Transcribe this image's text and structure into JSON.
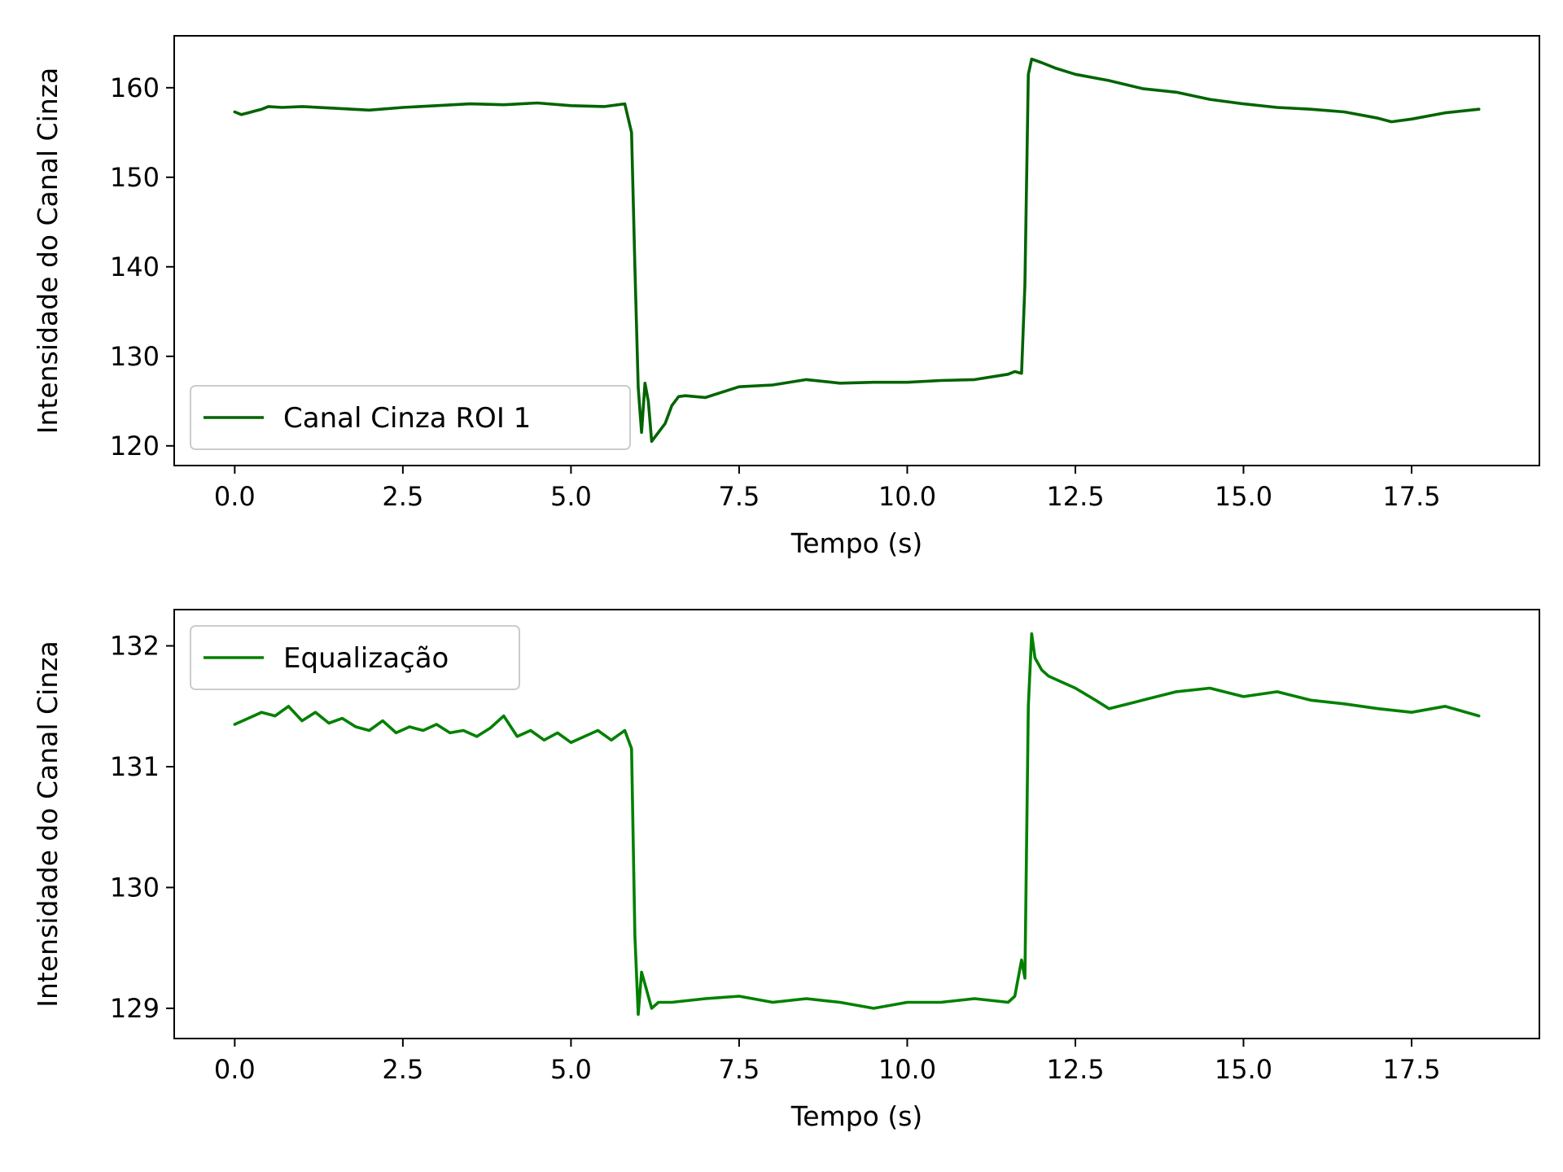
{
  "chart_data": [
    {
      "type": "line",
      "xlabel": "Tempo (s)",
      "ylabel": "Intensidade do Canal Cinza",
      "xlim": [
        -0.9,
        19.4
      ],
      "ylim": [
        117.8,
        165.8
      ],
      "xticks": [
        0.0,
        2.5,
        5.0,
        7.5,
        10.0,
        12.5,
        15.0,
        17.5
      ],
      "xtick_labels": [
        "0.0",
        "2.5",
        "5.0",
        "7.5",
        "10.0",
        "12.5",
        "15.0",
        "17.5"
      ],
      "yticks": [
        120,
        130,
        140,
        150,
        160
      ],
      "ytick_labels": [
        "120",
        "130",
        "140",
        "150",
        "160"
      ],
      "grid": false,
      "legend_position": "lower-left",
      "series": [
        {
          "name": "Canal Cinza ROI 1",
          "color": "#006400",
          "x": [
            0.0,
            0.1,
            0.2,
            0.3,
            0.4,
            0.5,
            0.7,
            1.0,
            1.5,
            2.0,
            2.5,
            3.0,
            3.5,
            4.0,
            4.5,
            5.0,
            5.5,
            5.8,
            5.9,
            5.95,
            6.0,
            6.05,
            6.1,
            6.15,
            6.2,
            6.3,
            6.4,
            6.5,
            6.6,
            6.7,
            7.0,
            7.5,
            8.0,
            8.5,
            9.0,
            9.5,
            10.0,
            10.5,
            11.0,
            11.5,
            11.6,
            11.7,
            11.75,
            11.8,
            11.85,
            12.0,
            12.2,
            12.5,
            13.0,
            13.5,
            14.0,
            14.5,
            15.0,
            15.5,
            16.0,
            16.5,
            17.0,
            17.2,
            17.5,
            18.0,
            18.5
          ],
          "y": [
            157.3,
            157.0,
            157.2,
            157.4,
            157.6,
            157.9,
            157.8,
            157.9,
            157.7,
            157.5,
            157.8,
            158.0,
            158.2,
            158.1,
            158.3,
            158.0,
            157.9,
            158.2,
            155.0,
            140.0,
            126.5,
            121.5,
            127.0,
            125.0,
            120.5,
            121.5,
            122.5,
            124.5,
            125.5,
            125.6,
            125.4,
            126.6,
            126.8,
            127.4,
            127.0,
            127.1,
            127.1,
            127.3,
            127.4,
            128.0,
            128.3,
            128.1,
            138.0,
            161.5,
            163.2,
            162.8,
            162.2,
            161.5,
            160.8,
            159.9,
            159.5,
            158.7,
            158.2,
            157.8,
            157.6,
            157.3,
            156.6,
            156.2,
            156.5,
            157.2,
            157.6
          ]
        }
      ]
    },
    {
      "type": "line",
      "xlabel": "Tempo (s)",
      "ylabel": "Intensidade do Canal Cinza",
      "xlim": [
        -0.9,
        19.4
      ],
      "ylim": [
        128.75,
        132.3
      ],
      "xticks": [
        0.0,
        2.5,
        5.0,
        7.5,
        10.0,
        12.5,
        15.0,
        17.5
      ],
      "xtick_labels": [
        "0.0",
        "2.5",
        "5.0",
        "7.5",
        "10.0",
        "12.5",
        "15.0",
        "17.5"
      ],
      "yticks": [
        129,
        130,
        131,
        132
      ],
      "ytick_labels": [
        "129",
        "130",
        "131",
        "132"
      ],
      "grid": false,
      "legend_position": "upper-left",
      "series": [
        {
          "name": "Equalização",
          "color": "#008000",
          "x": [
            0.0,
            0.2,
            0.4,
            0.6,
            0.8,
            1.0,
            1.2,
            1.4,
            1.6,
            1.8,
            2.0,
            2.2,
            2.4,
            2.6,
            2.8,
            3.0,
            3.2,
            3.4,
            3.6,
            3.8,
            4.0,
            4.2,
            4.4,
            4.6,
            4.8,
            5.0,
            5.2,
            5.4,
            5.6,
            5.8,
            5.9,
            5.95,
            6.0,
            6.05,
            6.1,
            6.2,
            6.3,
            6.5,
            7.0,
            7.5,
            8.0,
            8.5,
            9.0,
            9.5,
            10.0,
            10.5,
            11.0,
            11.5,
            11.6,
            11.7,
            11.75,
            11.8,
            11.85,
            11.9,
            12.0,
            12.1,
            12.3,
            12.5,
            12.8,
            13.0,
            13.5,
            14.0,
            14.5,
            15.0,
            15.5,
            16.0,
            16.5,
            17.0,
            17.5,
            18.0,
            18.5
          ],
          "y": [
            131.35,
            131.4,
            131.45,
            131.42,
            131.5,
            131.38,
            131.45,
            131.36,
            131.4,
            131.33,
            131.3,
            131.38,
            131.28,
            131.33,
            131.3,
            131.35,
            131.28,
            131.3,
            131.25,
            131.32,
            131.42,
            131.25,
            131.3,
            131.22,
            131.28,
            131.2,
            131.25,
            131.3,
            131.22,
            131.3,
            131.15,
            129.6,
            128.95,
            129.3,
            129.2,
            129.0,
            129.05,
            129.05,
            129.08,
            129.1,
            129.05,
            129.08,
            129.05,
            129.0,
            129.05,
            129.05,
            129.08,
            129.05,
            129.1,
            129.4,
            129.25,
            131.5,
            132.1,
            131.9,
            131.8,
            131.75,
            131.7,
            131.65,
            131.55,
            131.48,
            131.55,
            131.62,
            131.65,
            131.58,
            131.62,
            131.55,
            131.52,
            131.48,
            131.45,
            131.5,
            131.42
          ]
        }
      ]
    }
  ]
}
